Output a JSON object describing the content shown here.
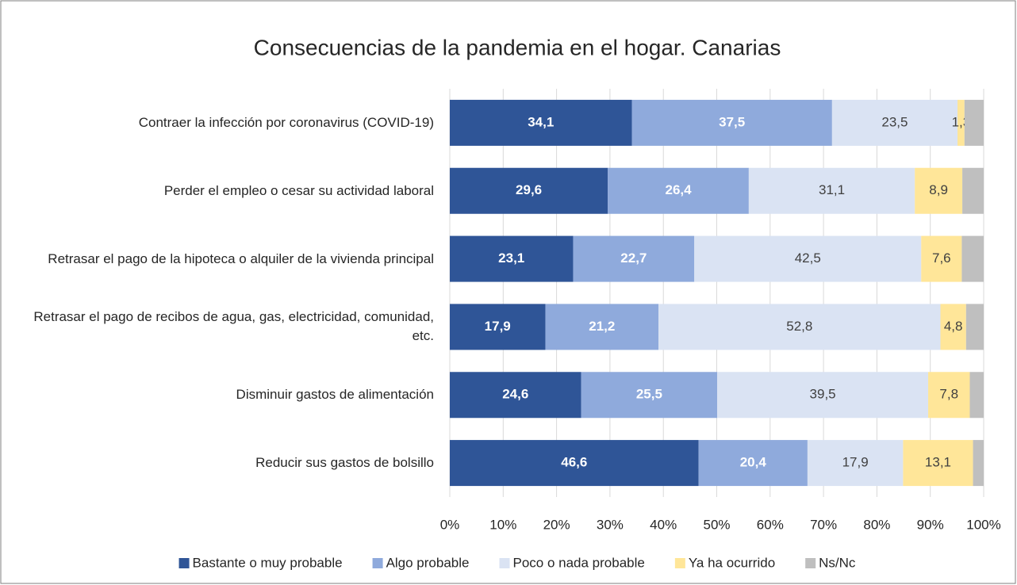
{
  "chart_data": {
    "type": "stacked_bar_horizontal_percent",
    "title": "Consecuencias de la pandemia en el hogar. Canarias",
    "categories": [
      "Contraer la infección por coronavirus (COVID-19)",
      "Perder el empleo o cesar su actividad laboral",
      "Retrasar el pago de la hipoteca o alquiler de la vivienda principal",
      "Retrasar el pago de recibos de agua, gas, electricidad, comunidad, etc.",
      "Disminuir gastos de alimentación",
      "Reducir sus gastos de bolsillo"
    ],
    "series": [
      {
        "name": "Bastante o muy probable",
        "color": "#2f5597",
        "values": [
          34.1,
          29.6,
          23.1,
          17.9,
          24.6,
          46.6
        ],
        "value_labels": [
          "34,1",
          "29,6",
          "23,1",
          "17,9",
          "24,6",
          "46,6"
        ]
      },
      {
        "name": "Algo probable",
        "color": "#8faadc",
        "values": [
          37.5,
          26.4,
          22.7,
          21.2,
          25.5,
          20.4
        ],
        "value_labels": [
          "37,5",
          "26,4",
          "22,7",
          "21,2",
          "25,5",
          "20,4"
        ]
      },
      {
        "name": "Poco o nada probable",
        "color": "#dae3f3",
        "values": [
          23.5,
          31.1,
          42.5,
          52.8,
          39.5,
          17.9
        ],
        "value_labels": [
          "23,5",
          "31,1",
          "42,5",
          "52,8",
          "39,5",
          "17,9"
        ]
      },
      {
        "name": "Ya ha ocurrido",
        "color": "#ffe699",
        "values": [
          1.3,
          8.9,
          7.6,
          4.8,
          7.8,
          13.1
        ],
        "value_labels": [
          "1,3",
          "8,9",
          "7,6",
          "4,8",
          "7,8",
          "13,1"
        ]
      },
      {
        "name": "Ns/Nc",
        "color": "#bfbfbf",
        "values": [
          3.6,
          4.0,
          4.1,
          3.3,
          2.6,
          2.0
        ]
      }
    ],
    "xlim": [
      0,
      100
    ],
    "xticks": [
      {
        "value": 0,
        "label": "0%"
      },
      {
        "value": 10,
        "label": "10%"
      },
      {
        "value": 20,
        "label": "20%"
      },
      {
        "value": 30,
        "label": "30%"
      },
      {
        "value": 40,
        "label": "40%"
      },
      {
        "value": 50,
        "label": "50%"
      },
      {
        "value": 60,
        "label": "60%"
      },
      {
        "value": 70,
        "label": "70%"
      },
      {
        "value": 80,
        "label": "80%"
      },
      {
        "value": 90,
        "label": "90%"
      },
      {
        "value": 100,
        "label": "100%"
      }
    ],
    "grid": true,
    "legend": "bottom"
  }
}
